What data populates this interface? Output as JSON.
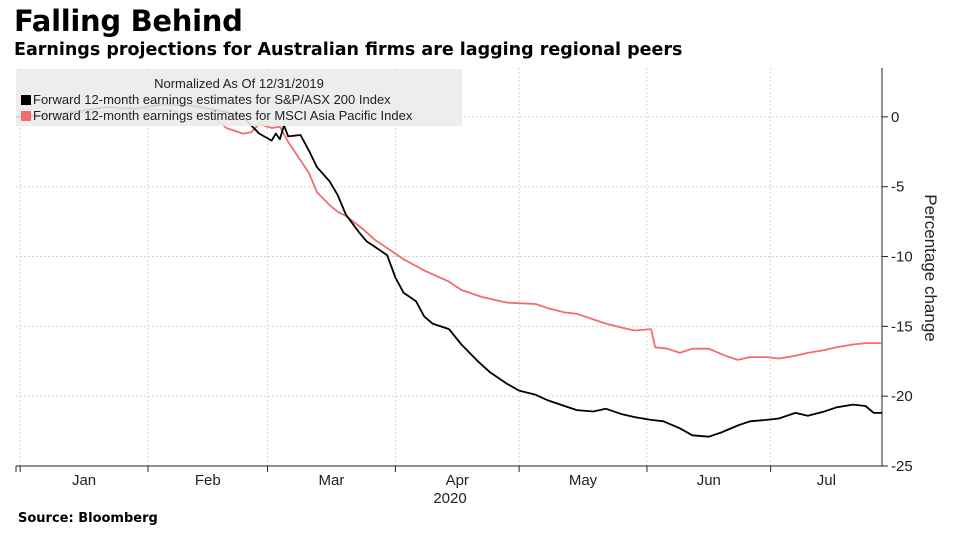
{
  "title": "Falling Behind",
  "subtitle": "Earnings projections for Australian firms are lagging regional peers",
  "source": "Source: Bloomberg",
  "chart_data": {
    "type": "line",
    "legend_title": "Normalized As Of 12/31/2019",
    "legend_placement": "top-left",
    "ylabel": "Percentage change",
    "ylim": [
      -25,
      3.5
    ],
    "yticks": [
      0,
      -5,
      -10,
      -15,
      -20,
      -25
    ],
    "y_axis_side": "right",
    "x_range": [
      "2019-12-31",
      "2020-07-28"
    ],
    "x_month_labels": [
      "Jan",
      "Feb",
      "Mar",
      "Apr",
      "May",
      "Jun",
      "Jul"
    ],
    "x_year_label": "2020",
    "grid": true,
    "series": [
      {
        "name": "Forward 12-month earnings estimates for S&P/ASX 200 Index",
        "color": "#000000",
        "points": [
          [
            "2019-12-31",
            0
          ],
          [
            "2020-01-07",
            0.1
          ],
          [
            "2020-01-15",
            0.4
          ],
          [
            "2020-01-22",
            0.7
          ],
          [
            "2020-01-29",
            0.6
          ],
          [
            "2020-02-05",
            0.9
          ],
          [
            "2020-02-12",
            0.8
          ],
          [
            "2020-02-19",
            0.4
          ],
          [
            "2020-02-24",
            0
          ],
          [
            "2020-02-26",
            -0.6
          ],
          [
            "2020-02-28",
            -1.2
          ],
          [
            "2020-03-02",
            -1.7
          ],
          [
            "2020-03-03",
            -1.2
          ],
          [
            "2020-03-04",
            -1.6
          ],
          [
            "2020-03-05",
            -0.6
          ],
          [
            "2020-03-06",
            -1.4
          ],
          [
            "2020-03-09",
            -1.3
          ],
          [
            "2020-03-11",
            -2.4
          ],
          [
            "2020-03-13",
            -3.6
          ],
          [
            "2020-03-16",
            -4.6
          ],
          [
            "2020-03-18",
            -5.6
          ],
          [
            "2020-03-20",
            -7.0
          ],
          [
            "2020-03-23",
            -8.2
          ],
          [
            "2020-03-25",
            -8.9
          ],
          [
            "2020-03-27",
            -9.3
          ],
          [
            "2020-03-30",
            -9.9
          ],
          [
            "2020-04-01",
            -11.5
          ],
          [
            "2020-04-03",
            -12.6
          ],
          [
            "2020-04-06",
            -13.2
          ],
          [
            "2020-04-08",
            -14.3
          ],
          [
            "2020-04-10",
            -14.8
          ],
          [
            "2020-04-14",
            -15.2
          ],
          [
            "2020-04-17",
            -16.3
          ],
          [
            "2020-04-21",
            -17.5
          ],
          [
            "2020-04-24",
            -18.3
          ],
          [
            "2020-04-28",
            -19.1
          ],
          [
            "2020-05-01",
            -19.6
          ],
          [
            "2020-05-05",
            -19.9
          ],
          [
            "2020-05-08",
            -20.3
          ],
          [
            "2020-05-12",
            -20.7
          ],
          [
            "2020-05-15",
            -21.0
          ],
          [
            "2020-05-19",
            -21.1
          ],
          [
            "2020-05-22",
            -20.9
          ],
          [
            "2020-05-26",
            -21.3
          ],
          [
            "2020-05-29",
            -21.5
          ],
          [
            "2020-06-02",
            -21.7
          ],
          [
            "2020-06-05",
            -21.8
          ],
          [
            "2020-06-09",
            -22.3
          ],
          [
            "2020-06-12",
            -22.8
          ],
          [
            "2020-06-16",
            -22.9
          ],
          [
            "2020-06-19",
            -22.6
          ],
          [
            "2020-06-23",
            -22.1
          ],
          [
            "2020-06-26",
            -21.8
          ],
          [
            "2020-06-30",
            -21.7
          ],
          [
            "2020-07-03",
            -21.6
          ],
          [
            "2020-07-07",
            -21.2
          ],
          [
            "2020-07-10",
            -21.4
          ],
          [
            "2020-07-14",
            -21.1
          ],
          [
            "2020-07-17",
            -20.8
          ],
          [
            "2020-07-21",
            -20.6
          ],
          [
            "2020-07-24",
            -20.7
          ],
          [
            "2020-07-26",
            -21.2
          ],
          [
            "2020-07-28",
            -21.2
          ]
        ]
      },
      {
        "name": "Forward 12-month earnings estimates for MSCI Asia Pacific Index",
        "color": "#f26d6d",
        "points": [
          [
            "2019-12-31",
            0
          ],
          [
            "2020-01-07",
            0.2
          ],
          [
            "2020-01-15",
            0.3
          ],
          [
            "2020-01-22",
            0.4
          ],
          [
            "2020-01-29",
            0.6
          ],
          [
            "2020-02-05",
            0.5
          ],
          [
            "2020-02-12",
            0.3
          ],
          [
            "2020-02-17",
            0
          ],
          [
            "2020-02-20",
            -0.8
          ],
          [
            "2020-02-24",
            -1.2
          ],
          [
            "2020-02-26",
            -1.1
          ],
          [
            "2020-02-28",
            -0.5
          ],
          [
            "2020-03-02",
            -0.8
          ],
          [
            "2020-03-04",
            -0.7
          ],
          [
            "2020-03-06",
            -1.8
          ],
          [
            "2020-03-09",
            -3.1
          ],
          [
            "2020-03-11",
            -4.0
          ],
          [
            "2020-03-13",
            -5.4
          ],
          [
            "2020-03-16",
            -6.3
          ],
          [
            "2020-03-18",
            -6.8
          ],
          [
            "2020-03-20",
            -7.1
          ],
          [
            "2020-03-24",
            -8.0
          ],
          [
            "2020-03-27",
            -8.8
          ],
          [
            "2020-03-31",
            -9.6
          ],
          [
            "2020-04-03",
            -10.2
          ],
          [
            "2020-04-08",
            -11.0
          ],
          [
            "2020-04-14",
            -11.8
          ],
          [
            "2020-04-17",
            -12.4
          ],
          [
            "2020-04-22",
            -12.9
          ],
          [
            "2020-04-28",
            -13.3
          ],
          [
            "2020-05-05",
            -13.4
          ],
          [
            "2020-05-08",
            -13.7
          ],
          [
            "2020-05-12",
            -14.0
          ],
          [
            "2020-05-15",
            -14.1
          ],
          [
            "2020-05-19",
            -14.5
          ],
          [
            "2020-05-22",
            -14.8
          ],
          [
            "2020-05-26",
            -15.1
          ],
          [
            "2020-05-29",
            -15.3
          ],
          [
            "2020-06-02",
            -15.2
          ],
          [
            "2020-06-03",
            -16.5
          ],
          [
            "2020-06-06",
            -16.6
          ],
          [
            "2020-06-09",
            -16.9
          ],
          [
            "2020-06-12",
            -16.6
          ],
          [
            "2020-06-16",
            -16.6
          ],
          [
            "2020-06-20",
            -17.1
          ],
          [
            "2020-06-23",
            -17.4
          ],
          [
            "2020-06-26",
            -17.2
          ],
          [
            "2020-06-30",
            -17.2
          ],
          [
            "2020-07-03",
            -17.3
          ],
          [
            "2020-07-07",
            -17.1
          ],
          [
            "2020-07-10",
            -16.9
          ],
          [
            "2020-07-14",
            -16.7
          ],
          [
            "2020-07-17",
            -16.5
          ],
          [
            "2020-07-21",
            -16.3
          ],
          [
            "2020-07-24",
            -16.2
          ],
          [
            "2020-07-28",
            -16.2
          ]
        ]
      }
    ]
  }
}
